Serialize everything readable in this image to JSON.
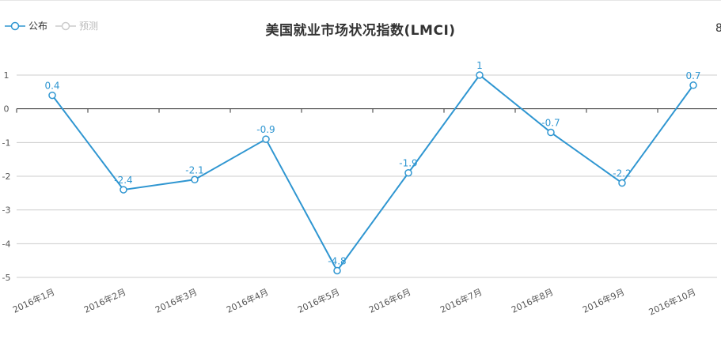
{
  "legend": {
    "items": [
      {
        "label": "公布",
        "active": true,
        "color": "#2f96d1"
      },
      {
        "label": "预测",
        "active": false,
        "color": "#bbbbbb"
      }
    ]
  },
  "chart_data": {
    "type": "line",
    "title": "美国就业市场状况指数(LMCI)",
    "categories": [
      "2016年1月",
      "2016年2月",
      "2016年3月",
      "2016年4月",
      "2016年5月",
      "2016年6月",
      "2016年7月",
      "2016年8月",
      "2016年9月",
      "2016年10月"
    ],
    "series": [
      {
        "name": "公布",
        "values": [
          0.4,
          -2.4,
          -2.1,
          -0.9,
          -4.8,
          -1.9,
          1,
          -0.7,
          -2.2,
          0.7
        ],
        "color": "#2f96d1"
      }
    ],
    "data_labels": [
      "0.4",
      "-2.4",
      "-2.1",
      "-0.9",
      "-4.8",
      "-1.9",
      "1",
      "-0.7",
      "-2.2",
      "0.7"
    ],
    "y_ticks": [
      "1",
      "0",
      "-1",
      "-2",
      "-3",
      "-4",
      "-5"
    ],
    "ylim": [
      -5,
      1
    ],
    "grid": true,
    "legend_position": "top-left"
  },
  "edge_glyph": "8"
}
